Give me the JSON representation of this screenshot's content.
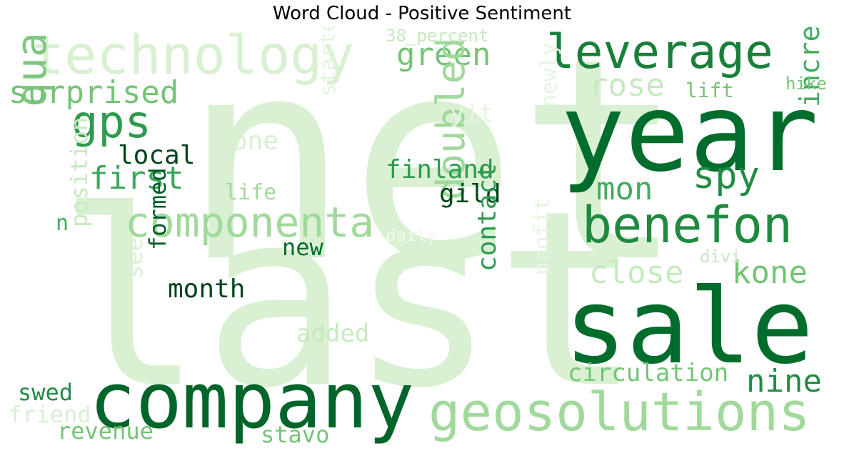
{
  "title": "Word Cloud - Positive Sentiment",
  "words": [
    {
      "text": "net",
      "color": "#d9f0d3",
      "vertical": false
    },
    {
      "text": "last",
      "color": "#d9f0d3",
      "vertical": false
    },
    {
      "text": "year",
      "color": "#006d2c",
      "vertical": false
    },
    {
      "text": "sale",
      "color": "#006d2c",
      "vertical": false
    },
    {
      "text": "company",
      "color": "#00652a",
      "vertical": false
    },
    {
      "text": "technology",
      "color": "#d9f0d3",
      "vertical": false
    },
    {
      "text": "geosolutions",
      "color": "#a1d99b",
      "vertical": false
    },
    {
      "text": "leverage",
      "color": "#1a7f3a",
      "vertical": false
    },
    {
      "text": "benefon",
      "color": "#1f8a3f",
      "vertical": false
    },
    {
      "text": "componenta",
      "color": "#a1d99b",
      "vertical": false
    },
    {
      "text": "quarter",
      "color": "#7fc67f",
      "vertical": true
    },
    {
      "text": "gps",
      "color": "#2e9a4e",
      "vertical": false
    },
    {
      "text": "surprised",
      "color": "#74c476",
      "vertical": false
    },
    {
      "text": "green",
      "color": "#74c476",
      "vertical": false
    },
    {
      "text": "first",
      "color": "#3ea55c",
      "vertical": false
    },
    {
      "text": "spy",
      "color": "#238b45",
      "vertical": false
    },
    {
      "text": "doubled",
      "color": "#a1d99b",
      "vertical": true
    },
    {
      "text": "mon",
      "color": "#41ab5d",
      "vertical": false
    },
    {
      "text": "rose",
      "color": "#c7e9c0",
      "vertical": false
    },
    {
      "text": "close",
      "color": "#c7e9c0",
      "vertical": false
    },
    {
      "text": "kone",
      "color": "#74c476",
      "vertical": false
    },
    {
      "text": "increased",
      "color": "#41ab5d",
      "vertical": true
    },
    {
      "text": "nine",
      "color": "#238b45",
      "vertical": false
    },
    {
      "text": "circulation",
      "color": "#74c476",
      "vertical": false
    },
    {
      "text": "finland",
      "color": "#2e9a4e",
      "vertical": false
    },
    {
      "text": "local",
      "color": "#00441b",
      "vertical": false
    },
    {
      "text": "gild",
      "color": "#00441b",
      "vertical": false
    },
    {
      "text": "month",
      "color": "#00441b",
      "vertical": false
    },
    {
      "text": "new",
      "color": "#006d2c",
      "vertical": false
    },
    {
      "text": "formed",
      "color": "#005a24",
      "vertical": true
    },
    {
      "text": "contact",
      "color": "#2e9a4e",
      "vertical": true
    },
    {
      "text": "position",
      "color": "#c7e9c0",
      "vertical": true
    },
    {
      "text": "see",
      "color": "#d9f0d3",
      "vertical": true
    },
    {
      "text": "one",
      "color": "#d9f0d3",
      "vertical": false
    },
    {
      "text": "life",
      "color": "#a1d99b",
      "vertical": false
    },
    {
      "text": "added",
      "color": "#c7e9c0",
      "vertical": false
    },
    {
      "text": "started",
      "color": "#e5f5e0",
      "vertical": true
    },
    {
      "text": "newly",
      "color": "#e5f5e0",
      "vertical": true
    },
    {
      "text": "yit",
      "color": "#e5f5e0",
      "vertical": false
    },
    {
      "text": "profit",
      "color": "#e5f5e0",
      "vertical": true
    },
    {
      "text": "lift",
      "color": "#74c476",
      "vertical": false
    },
    {
      "text": "hike",
      "color": "#74c476",
      "vertical": false
    },
    {
      "text": "divi",
      "color": "#c7e9c0",
      "vertical": false
    },
    {
      "text": "daily",
      "color": "#f0f9ec",
      "vertical": false
    },
    {
      "text": "38_percent",
      "color": "#c7e9c0",
      "vertical": false
    },
    {
      "text": "n",
      "color": "#41ab5d",
      "vertical": false
    },
    {
      "text": "swed",
      "color": "#238b45",
      "vertical": false
    },
    {
      "text": "friend",
      "color": "#d9f0d3",
      "vertical": false
    },
    {
      "text": "revenue",
      "color": "#74c476",
      "vertical": false
    },
    {
      "text": "stavo",
      "color": "#74c476",
      "vertical": false
    }
  ]
}
